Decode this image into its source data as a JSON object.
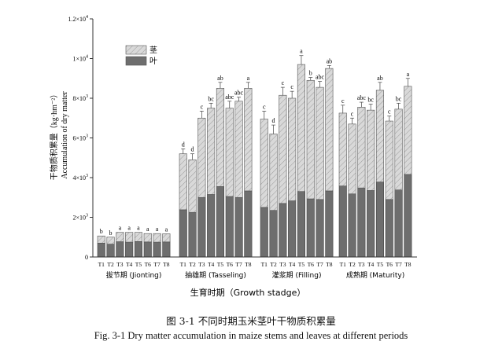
{
  "chart_data": {
    "type": "bar",
    "subtype": "stacked",
    "ylabel_cn": "干物质积累量（kg·hm⁻²）",
    "ylabel_en": "Accumulation of dry matter",
    "xlabel": "生育时期（Growth stadge）",
    "ylim": [
      0,
      12000
    ],
    "yticks": [
      {
        "v": 0,
        "base": "0",
        "exp": ""
      },
      {
        "v": 2000,
        "base": "2×10",
        "exp": "3"
      },
      {
        "v": 4000,
        "base": "4×10",
        "exp": "3"
      },
      {
        "v": 6000,
        "base": "6×10",
        "exp": "3"
      },
      {
        "v": 8000,
        "base": "8×10",
        "exp": "3"
      },
      {
        "v": 10000,
        "base": "1×10",
        "exp": "4"
      },
      {
        "v": 12000,
        "base": "1.2×10",
        "exp": "4"
      }
    ],
    "treatments": [
      "T1",
      "T2",
      "T3",
      "T4",
      "T5",
      "T6",
      "T7",
      "T8"
    ],
    "legend": [
      {
        "key": "stem",
        "label": "茎",
        "color": "#d4d4d4",
        "hatch": true
      },
      {
        "key": "leaf",
        "label": "叶",
        "color": "#6e6e6e",
        "hatch": false
      }
    ],
    "groups": [
      {
        "label": "拔节期 (Jionting)",
        "leaf": [
          700,
          650,
          770,
          750,
          780,
          760,
          750,
          760
        ],
        "total": [
          1060,
          1000,
          1240,
          1240,
          1240,
          1180,
          1180,
          1170
        ],
        "err": [
          0,
          0,
          0,
          0,
          0,
          0,
          0,
          0
        ],
        "letters": [
          "b",
          "b",
          "a",
          "a",
          "a",
          "a",
          "a",
          "a"
        ]
      },
      {
        "label": "抽雄期 (Tasseling)",
        "leaf": [
          2380,
          2250,
          3000,
          3150,
          3550,
          3050,
          3000,
          3330
        ],
        "total": [
          5200,
          4900,
          7000,
          7500,
          8500,
          7500,
          7850,
          8500
        ],
        "err": [
          250,
          300,
          350,
          250,
          300,
          350,
          200,
          300
        ],
        "letters": [
          "d",
          "d",
          "c",
          "bc",
          "ab",
          "abc",
          "abc",
          "a"
        ]
      },
      {
        "label": "灌浆期 (Filling)",
        "leaf": [
          2500,
          2350,
          2700,
          2830,
          3300,
          2930,
          2900,
          3330
        ],
        "total": [
          6950,
          6200,
          8150,
          8000,
          9700,
          8900,
          8550,
          9500
        ],
        "err": [
          400,
          450,
          400,
          350,
          450,
          150,
          300,
          150
        ],
        "letters": [
          "c",
          "d",
          "c",
          "c",
          "a",
          "b",
          "abc",
          "ab"
        ]
      },
      {
        "label": "成熟期 (Maturity)",
        "leaf": [
          3580,
          3180,
          3480,
          3350,
          3780,
          2900,
          3380,
          4160
        ],
        "total": [
          7250,
          6700,
          7550,
          7400,
          8400,
          6850,
          7450,
          8600
        ],
        "err": [
          400,
          300,
          250,
          300,
          400,
          250,
          300,
          400
        ],
        "letters": [
          "c",
          "c",
          "abc",
          "bc",
          "ab",
          "c",
          "bc",
          "a"
        ]
      }
    ]
  },
  "caption_cn": "图 3-1  不同时期玉米茎叶干物质积累量",
  "caption_en": "Fig. 3-1 Dry matter accumulation in maize stems and leaves at different periods"
}
